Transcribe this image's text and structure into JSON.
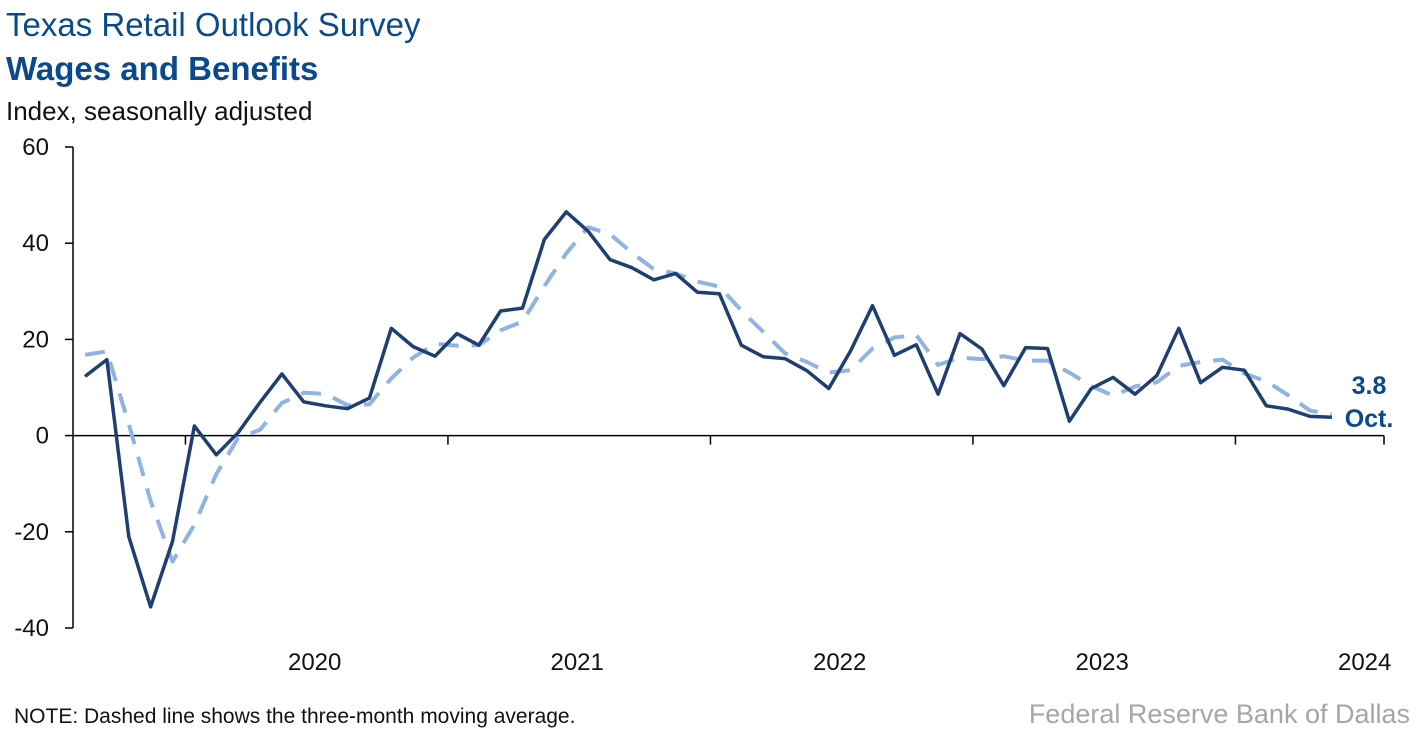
{
  "header": {
    "title": "Texas Retail Outlook Survey",
    "subtitle": "Wages and Benefits",
    "units": "Index, seasonally adjusted"
  },
  "footer": {
    "note": "NOTE: Dashed line shows the three-month moving average.",
    "source": "Federal Reserve Bank of Dallas"
  },
  "chart_data": {
    "type": "line",
    "title": "Wages and Benefits",
    "ylabel": "Index, seasonally adjusted",
    "ylim": [
      -40,
      60
    ],
    "yticks": [
      60,
      40,
      20,
      0,
      -20,
      -40
    ],
    "xticks": [
      "2020",
      "2021",
      "2022",
      "2023",
      "2024"
    ],
    "x_start": "2019-08",
    "x_end": "2024-10",
    "grid": false,
    "colors": {
      "index": "#1f3f72",
      "moving_average": "#8fb3e3"
    },
    "series": [
      {
        "name": "Index",
        "style": "solid",
        "values": [
          12.3,
          15.8,
          -21.0,
          -35.6,
          -22.0,
          2.0,
          -4.0,
          0.6,
          6.9,
          12.8,
          7.0,
          6.2,
          5.6,
          7.8,
          22.3,
          18.5,
          16.5,
          21.2,
          18.8,
          25.9,
          26.5,
          40.8,
          46.5,
          42.5,
          36.6,
          34.9,
          32.4,
          33.7,
          29.8,
          29.5,
          18.8,
          16.4,
          16.0,
          13.5,
          9.8,
          17.6,
          27.0,
          16.7,
          18.9,
          8.6,
          21.2,
          18.0,
          10.4,
          18.3,
          18.1,
          3.0,
          9.8,
          12.1,
          8.6,
          12.5,
          22.3,
          11.0,
          14.2,
          13.6,
          6.2,
          5.5,
          4.0,
          3.8
        ]
      },
      {
        "name": "Three-month moving average",
        "style": "dashed",
        "values": [
          16.8,
          17.5,
          2.4,
          -13.6,
          -26.2,
          -18.5,
          -8.0,
          -0.5,
          1.2,
          6.8,
          8.9,
          8.7,
          6.3,
          6.5,
          11.9,
          16.2,
          19.1,
          18.7,
          18.8,
          21.9,
          23.7,
          31.1,
          37.9,
          43.3,
          41.9,
          38.0,
          34.6,
          33.7,
          32.0,
          31.0,
          26.0,
          21.6,
          17.1,
          15.3,
          13.1,
          13.6,
          18.1,
          20.4,
          20.9,
          14.7,
          16.2,
          15.9,
          16.5,
          15.6,
          15.6,
          13.1,
          10.3,
          8.3,
          10.2,
          11.1,
          14.5,
          15.3,
          15.8,
          12.9,
          11.3,
          8.4,
          5.2,
          4.4
        ]
      }
    ],
    "annotation": {
      "value": "3.8",
      "label": "Oct."
    }
  }
}
